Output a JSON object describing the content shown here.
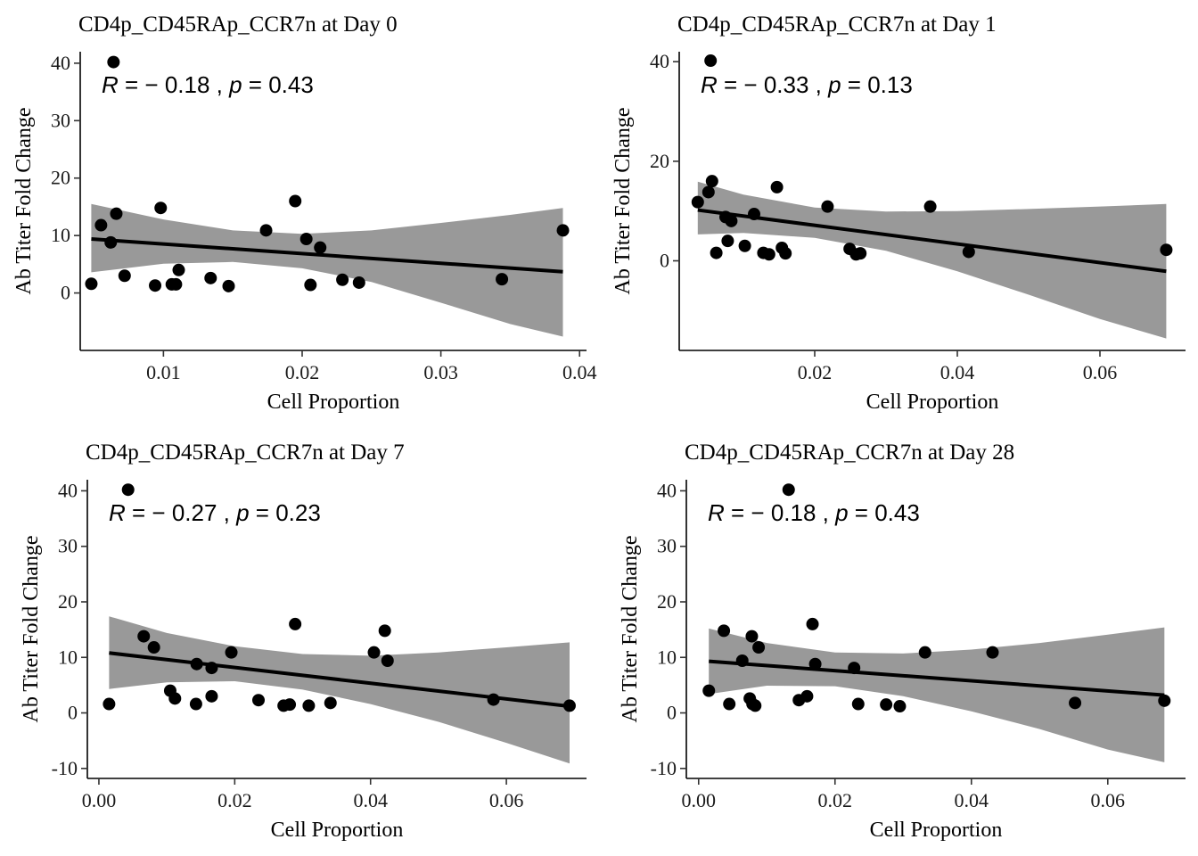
{
  "chart_data": [
    {
      "type": "scatter",
      "title": "CD4p_CD45RAp_CCR7n at Day 0",
      "xlabel": "Cell Proportion",
      "ylabel": "Ab Titer Fold Change",
      "xlim": [
        0.004,
        0.0405
      ],
      "ylim": [
        -10,
        42
      ],
      "x_ticks": [
        0.01,
        0.02,
        0.03,
        0.04
      ],
      "x_tick_labels": [
        "0.01",
        "0.02",
        "0.03",
        "0.04"
      ],
      "y_ticks": [
        0,
        10,
        20,
        30,
        40
      ],
      "y_tick_labels": [
        "0",
        "10",
        "20",
        "30",
        "40"
      ],
      "stat": {
        "r_label": "R",
        "r_value": "= − 0.18",
        "p_label": "p",
        "p_value": "= 0.43"
      },
      "points": [
        [
          0.0048,
          1.6
        ],
        [
          0.0055,
          11.8
        ],
        [
          0.0062,
          8.8
        ],
        [
          0.0066,
          13.8
        ],
        [
          0.0072,
          3.0
        ],
        [
          0.0094,
          1.3
        ],
        [
          0.0098,
          14.8
        ],
        [
          0.0106,
          1.5
        ],
        [
          0.0109,
          1.5
        ],
        [
          0.0111,
          4.0
        ],
        [
          0.0134,
          2.6
        ],
        [
          0.0147,
          1.2
        ],
        [
          0.0174,
          10.9
        ],
        [
          0.0195,
          16.0
        ],
        [
          0.0203,
          9.4
        ],
        [
          0.0206,
          1.4
        ],
        [
          0.0213,
          7.9
        ],
        [
          0.0229,
          2.3
        ],
        [
          0.0241,
          1.8
        ],
        [
          0.0344,
          2.4
        ],
        [
          0.0388,
          10.9
        ],
        [
          0.0064,
          40.2
        ]
      ],
      "fit_line": [
        [
          0.0048,
          9.4
        ],
        [
          0.0388,
          3.7
        ]
      ],
      "confidence_band": {
        "x": [
          0.0048,
          0.01,
          0.015,
          0.02,
          0.025,
          0.03,
          0.035,
          0.0388
        ],
        "upper": [
          15.5,
          12.8,
          10.9,
          10.3,
          10.9,
          12.2,
          13.6,
          14.8
        ],
        "lower": [
          3.6,
          5.1,
          5.4,
          4.3,
          1.9,
          -1.7,
          -5.4,
          -7.6
        ]
      }
    },
    {
      "type": "scatter",
      "title": "CD4p_CD45RAp_CCR7n at Day 1",
      "xlabel": "Cell Proportion",
      "ylabel": "Ab Titer Fold Change",
      "xlim": [
        0.001,
        0.072
      ],
      "ylim": [
        -18,
        42
      ],
      "x_ticks": [
        0.02,
        0.04,
        0.06
      ],
      "x_tick_labels": [
        "0.02",
        "0.04",
        "0.06"
      ],
      "y_ticks": [
        0,
        20,
        40
      ],
      "y_tick_labels": [
        "0",
        "20",
        "40"
      ],
      "stat": {
        "r_label": "R",
        "r_value": "= − 0.33",
        "p_label": "p",
        "p_value": "= 0.13"
      },
      "points": [
        [
          0.0036,
          11.8
        ],
        [
          0.0051,
          13.8
        ],
        [
          0.0056,
          16.0
        ],
        [
          0.0062,
          1.6
        ],
        [
          0.0075,
          8.8
        ],
        [
          0.0078,
          4.0
        ],
        [
          0.0083,
          8.0
        ],
        [
          0.0102,
          3.0
        ],
        [
          0.0115,
          9.4
        ],
        [
          0.0128,
          1.6
        ],
        [
          0.0136,
          1.3
        ],
        [
          0.0147,
          14.8
        ],
        [
          0.0154,
          2.6
        ],
        [
          0.0159,
          1.5
        ],
        [
          0.0218,
          10.9
        ],
        [
          0.0249,
          2.4
        ],
        [
          0.0258,
          1.3
        ],
        [
          0.0264,
          1.5
        ],
        [
          0.0362,
          10.9
        ],
        [
          0.0416,
          1.8
        ],
        [
          0.0693,
          2.2
        ],
        [
          0.0054,
          40.2
        ]
      ],
      "fit_line": [
        [
          0.0036,
          10.2
        ],
        [
          0.0693,
          -2.1
        ]
      ],
      "confidence_band": {
        "x": [
          0.0036,
          0.01,
          0.02,
          0.03,
          0.04,
          0.05,
          0.06,
          0.0693
        ],
        "upper": [
          15.9,
          13.3,
          10.7,
          9.9,
          10.0,
          10.4,
          10.9,
          11.4
        ],
        "lower": [
          5.3,
          5.6,
          4.6,
          2.0,
          -2.1,
          -6.8,
          -11.7,
          -15.6
        ]
      }
    },
    {
      "type": "scatter",
      "title": "CD4p_CD45RAp_CCR7n at Day 7",
      "xlabel": "Cell Proportion",
      "ylabel": "Ab Titer Fold Change",
      "xlim": [
        -0.0017,
        0.0718
      ],
      "ylim": [
        -11.8,
        42
      ],
      "x_ticks": [
        0.0,
        0.02,
        0.04,
        0.06
      ],
      "x_tick_labels": [
        "0.00",
        "0.02",
        "0.04",
        "0.06"
      ],
      "y_ticks": [
        -10,
        0,
        10,
        20,
        30,
        40
      ],
      "y_tick_labels": [
        "-10",
        "0",
        "10",
        "20",
        "30",
        "40"
      ],
      "stat": {
        "r_label": "R",
        "r_value": "= − 0.27",
        "p_label": "p",
        "p_value": "= 0.23"
      },
      "points": [
        [
          0.0015,
          1.6
        ],
        [
          0.0066,
          13.8
        ],
        [
          0.0081,
          11.8
        ],
        [
          0.0105,
          4.0
        ],
        [
          0.0112,
          2.6
        ],
        [
          0.0143,
          1.6
        ],
        [
          0.0144,
          8.8
        ],
        [
          0.0166,
          8.1
        ],
        [
          0.0166,
          3.0
        ],
        [
          0.0195,
          10.9
        ],
        [
          0.0235,
          2.3
        ],
        [
          0.0272,
          1.3
        ],
        [
          0.0281,
          1.5
        ],
        [
          0.0289,
          16.0
        ],
        [
          0.0309,
          1.3
        ],
        [
          0.0341,
          1.8
        ],
        [
          0.0405,
          10.9
        ],
        [
          0.0421,
          14.8
        ],
        [
          0.0425,
          9.4
        ],
        [
          0.0581,
          2.4
        ],
        [
          0.0693,
          1.3
        ],
        [
          0.0043,
          40.2
        ]
      ],
      "fit_line": [
        [
          0.0015,
          10.8
        ],
        [
          0.0693,
          1.2
        ]
      ],
      "confidence_band": {
        "x": [
          0.0015,
          0.01,
          0.02,
          0.03,
          0.04,
          0.05,
          0.06,
          0.0693
        ],
        "upper": [
          17.4,
          14.4,
          12.0,
          10.6,
          10.3,
          10.9,
          11.8,
          12.7
        ],
        "lower": [
          4.3,
          5.5,
          5.7,
          4.2,
          1.6,
          -1.6,
          -5.4,
          -9.1
        ]
      }
    },
    {
      "type": "scatter",
      "title": "CD4p_CD45RAp_CCR7n at Day 28",
      "xlabel": "Cell Proportion",
      "ylabel": "Ab Titer Fold Change",
      "xlim": [
        -0.0018,
        0.0714
      ],
      "ylim": [
        -11.8,
        42
      ],
      "x_ticks": [
        0.0,
        0.02,
        0.04,
        0.06
      ],
      "x_tick_labels": [
        "0.00",
        "0.02",
        "0.04",
        "0.06"
      ],
      "y_ticks": [
        -10,
        0,
        10,
        20,
        30,
        40
      ],
      "y_tick_labels": [
        "-10",
        "0",
        "10",
        "20",
        "30",
        "40"
      ],
      "stat": {
        "r_label": "R",
        "r_value": "= − 0.18",
        "p_label": "p",
        "p_value": "= 0.43"
      },
      "points": [
        [
          0.0015,
          4.0
        ],
        [
          0.0037,
          14.8
        ],
        [
          0.0045,
          1.6
        ],
        [
          0.0064,
          9.4
        ],
        [
          0.0075,
          2.6
        ],
        [
          0.0078,
          13.8
        ],
        [
          0.0079,
          1.6
        ],
        [
          0.0083,
          1.3
        ],
        [
          0.0088,
          11.8
        ],
        [
          0.0147,
          2.3
        ],
        [
          0.0159,
          3.0
        ],
        [
          0.0167,
          16.0
        ],
        [
          0.0171,
          8.8
        ],
        [
          0.0228,
          8.1
        ],
        [
          0.0234,
          1.6
        ],
        [
          0.0275,
          1.5
        ],
        [
          0.0295,
          1.2
        ],
        [
          0.0332,
          10.9
        ],
        [
          0.0431,
          10.9
        ],
        [
          0.0552,
          1.8
        ],
        [
          0.0683,
          2.2
        ],
        [
          0.0132,
          40.2
        ]
      ],
      "fit_line": [
        [
          0.0015,
          9.3
        ],
        [
          0.0683,
          3.2
        ]
      ],
      "confidence_band": {
        "x": [
          0.0015,
          0.01,
          0.02,
          0.03,
          0.04,
          0.05,
          0.06,
          0.0683
        ],
        "upper": [
          15.2,
          12.6,
          10.9,
          10.7,
          11.4,
          12.6,
          14.1,
          15.4
        ],
        "lower": [
          3.4,
          4.9,
          4.8,
          3.0,
          0.3,
          -2.9,
          -6.6,
          -8.9
        ]
      }
    }
  ]
}
